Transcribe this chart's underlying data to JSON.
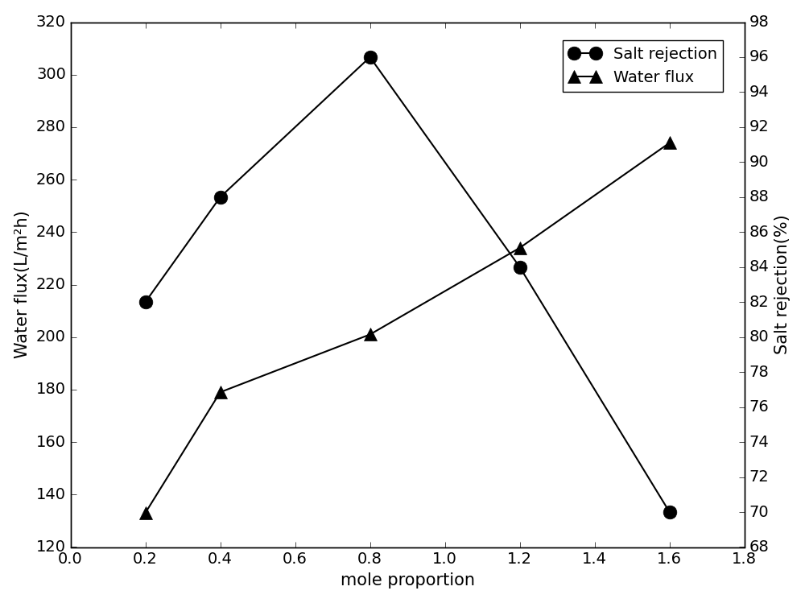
{
  "x": [
    0.2,
    0.4,
    0.8,
    1.2,
    1.6
  ],
  "salt_rejection": [
    82,
    88,
    96,
    84,
    70
  ],
  "water_flux": [
    133,
    179,
    201,
    234,
    274
  ],
  "xlabel": "mole proportion",
  "ylabel_left": "Water flux(L/m²h)",
  "ylabel_right": "Salt rejection(%)",
  "xlim": [
    0.0,
    1.8
  ],
  "ylim_left": [
    120,
    320
  ],
  "ylim_right": [
    68,
    98
  ],
  "xticks": [
    0.0,
    0.2,
    0.4,
    0.6,
    0.8,
    1.0,
    1.2,
    1.4,
    1.6,
    1.8
  ],
  "yticks_left": [
    120,
    140,
    160,
    180,
    200,
    220,
    240,
    260,
    280,
    300,
    320
  ],
  "yticks_right": [
    68,
    70,
    72,
    74,
    76,
    78,
    80,
    82,
    84,
    86,
    88,
    90,
    92,
    94,
    96,
    98
  ],
  "legend_salt": "Salt rejection",
  "legend_flux": "Water flux",
  "line_color": "black",
  "marker_circle": "o",
  "marker_triangle": "^",
  "marker_size": 10,
  "marker_size_filled": 12,
  "line_width": 1.5,
  "font_size_ticks": 14,
  "font_size_labels": 15,
  "font_size_legend": 14
}
